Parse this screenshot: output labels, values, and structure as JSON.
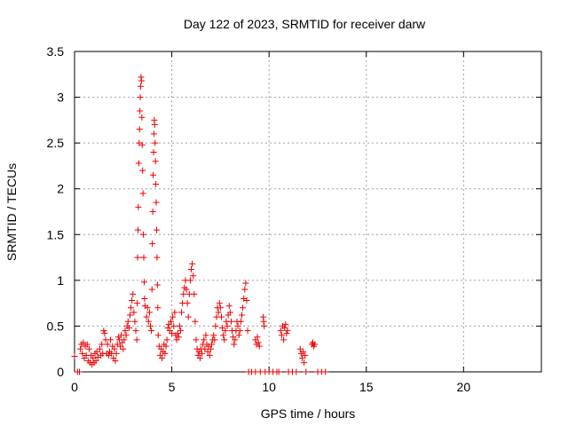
{
  "chart_data": {
    "type": "scatter",
    "title": "Day 122 of 2023, SRMTID for receiver darw",
    "xlabel": "GPS time / hours",
    "ylabel": "SRMTID / TECUs",
    "xlim": [
      0,
      24
    ],
    "ylim": [
      0,
      3.5
    ],
    "xticks": [
      0,
      5,
      10,
      15,
      20
    ],
    "xtick_labels": [
      "0",
      "5",
      "10",
      "15",
      "20"
    ],
    "yticks": [
      0,
      0.5,
      1,
      1.5,
      2,
      2.5,
      3,
      3.5
    ],
    "ytick_labels": [
      "0",
      "0.5",
      "1",
      "1.5",
      "2",
      "2.5",
      "3",
      "3.5"
    ],
    "grid": true,
    "marker": "+",
    "color": "#ee0000",
    "series": [
      {
        "name": "darw",
        "points": [
          [
            0.0,
            0.17
          ],
          [
            0.15,
            0.0
          ],
          [
            0.25,
            0.0
          ],
          [
            0.3,
            0.25
          ],
          [
            0.35,
            0.3
          ],
          [
            0.4,
            0.2
          ],
          [
            0.45,
            0.32
          ],
          [
            0.5,
            0.15
          ],
          [
            0.55,
            0.28
          ],
          [
            0.6,
            0.18
          ],
          [
            0.65,
            0.3
          ],
          [
            0.7,
            0.12
          ],
          [
            0.75,
            0.25
          ],
          [
            0.8,
            0.1
          ],
          [
            0.85,
            0.18
          ],
          [
            0.9,
            0.08
          ],
          [
            0.95,
            0.15
          ],
          [
            1.0,
            0.1
          ],
          [
            1.05,
            0.2
          ],
          [
            1.1,
            0.12
          ],
          [
            1.15,
            0.22
          ],
          [
            1.2,
            0.16
          ],
          [
            1.3,
            0.25
          ],
          [
            1.35,
            0.18
          ],
          [
            1.4,
            0.3
          ],
          [
            1.45,
            0.2
          ],
          [
            1.5,
            0.45
          ],
          [
            1.55,
            0.42
          ],
          [
            1.6,
            0.35
          ],
          [
            1.65,
            0.2
          ],
          [
            1.7,
            0.3
          ],
          [
            1.75,
            0.18
          ],
          [
            1.8,
            0.22
          ],
          [
            1.85,
            0.35
          ],
          [
            1.9,
            0.2
          ],
          [
            1.95,
            0.28
          ],
          [
            2.0,
            0.15
          ],
          [
            2.05,
            0.25
          ],
          [
            2.1,
            0.12
          ],
          [
            2.15,
            0.2
          ],
          [
            2.2,
            0.3
          ],
          [
            2.25,
            0.38
          ],
          [
            2.3,
            0.35
          ],
          [
            2.35,
            0.28
          ],
          [
            2.4,
            0.4
          ],
          [
            2.45,
            0.32
          ],
          [
            2.5,
            0.25
          ],
          [
            2.55,
            0.35
          ],
          [
            2.6,
            0.45
          ],
          [
            2.65,
            0.4
          ],
          [
            2.7,
            0.5
          ],
          [
            2.75,
            0.55
          ],
          [
            2.8,
            0.48
          ],
          [
            2.85,
            0.62
          ],
          [
            2.9,
            0.7
          ],
          [
            2.95,
            0.78
          ],
          [
            3.0,
            0.85
          ],
          [
            3.05,
            0.65
          ],
          [
            3.1,
            0.55
          ],
          [
            3.15,
            0.45
          ],
          [
            3.2,
            0.35
          ],
          [
            3.22,
            0.75
          ],
          [
            3.24,
            1.25
          ],
          [
            3.26,
            1.55
          ],
          [
            3.28,
            1.8
          ],
          [
            3.3,
            2.28
          ],
          [
            3.32,
            2.5
          ],
          [
            3.34,
            2.65
          ],
          [
            3.36,
            2.85
          ],
          [
            3.38,
            3.0
          ],
          [
            3.4,
            3.12
          ],
          [
            3.42,
            3.22
          ],
          [
            3.44,
            3.18
          ],
          [
            3.46,
            2.78
          ],
          [
            3.48,
            2.48
          ],
          [
            3.5,
            2.2
          ],
          [
            3.52,
            1.95
          ],
          [
            3.54,
            1.5
          ],
          [
            3.56,
            1.25
          ],
          [
            3.58,
            0.98
          ],
          [
            3.6,
            0.8
          ],
          [
            3.62,
            0.72
          ],
          [
            3.7,
            0.6
          ],
          [
            3.75,
            0.7
          ],
          [
            3.8,
            0.55
          ],
          [
            3.85,
            0.65
          ],
          [
            3.9,
            0.5
          ],
          [
            3.95,
            0.45
          ],
          [
            3.98,
            0.9
          ],
          [
            4.0,
            1.4
          ],
          [
            4.02,
            1.75
          ],
          [
            4.04,
            2.15
          ],
          [
            4.06,
            2.4
          ],
          [
            4.08,
            2.6
          ],
          [
            4.1,
            2.75
          ],
          [
            4.12,
            2.7
          ],
          [
            4.14,
            2.5
          ],
          [
            4.16,
            2.3
          ],
          [
            4.18,
            2.05
          ],
          [
            4.2,
            1.85
          ],
          [
            4.22,
            1.55
          ],
          [
            4.24,
            1.25
          ],
          [
            4.26,
            0.95
          ],
          [
            4.28,
            0.7
          ],
          [
            4.3,
            0.4
          ],
          [
            4.35,
            0.28
          ],
          [
            4.4,
            0.18
          ],
          [
            4.45,
            0.25
          ],
          [
            4.5,
            0.15
          ],
          [
            4.55,
            0.22
          ],
          [
            4.6,
            0.3
          ],
          [
            4.65,
            0.2
          ],
          [
            4.7,
            0.28
          ],
          [
            4.75,
            0.35
          ],
          [
            4.8,
            0.48
          ],
          [
            4.85,
            0.52
          ],
          [
            4.9,
            0.45
          ],
          [
            4.95,
            0.55
          ],
          [
            5.0,
            0.42
          ],
          [
            5.05,
            0.6
          ],
          [
            5.1,
            0.5
          ],
          [
            5.15,
            0.65
          ],
          [
            5.2,
            0.4
          ],
          [
            5.25,
            0.35
          ],
          [
            5.3,
            0.42
          ],
          [
            5.35,
            0.38
          ],
          [
            5.4,
            0.5
          ],
          [
            5.45,
            0.45
          ],
          [
            5.5,
            0.65
          ],
          [
            5.55,
            0.75
          ],
          [
            5.6,
            0.85
          ],
          [
            5.65,
            0.92
          ],
          [
            5.7,
            1.0
          ],
          [
            5.75,
            0.9
          ],
          [
            5.8,
            0.75
          ],
          [
            5.85,
            0.6
          ],
          [
            5.9,
            0.85
          ],
          [
            5.95,
            1.0
          ],
          [
            6.0,
            1.12
          ],
          [
            6.05,
            1.18
          ],
          [
            6.1,
            1.05
          ],
          [
            6.15,
            0.85
          ],
          [
            6.2,
            0.55
          ],
          [
            6.25,
            0.35
          ],
          [
            6.3,
            0.25
          ],
          [
            6.35,
            0.18
          ],
          [
            6.4,
            0.22
          ],
          [
            6.45,
            0.15
          ],
          [
            6.5,
            0.25
          ],
          [
            6.55,
            0.2
          ],
          [
            6.6,
            0.3
          ],
          [
            6.65,
            0.35
          ],
          [
            6.7,
            0.25
          ],
          [
            6.75,
            0.4
          ],
          [
            6.8,
            0.3
          ],
          [
            6.85,
            0.22
          ],
          [
            6.9,
            0.28
          ],
          [
            6.95,
            0.18
          ],
          [
            7.0,
            0.25
          ],
          [
            7.05,
            0.3
          ],
          [
            7.1,
            0.35
          ],
          [
            7.15,
            0.4
          ],
          [
            7.2,
            0.35
          ],
          [
            7.25,
            0.5
          ],
          [
            7.3,
            0.6
          ],
          [
            7.35,
            0.7
          ],
          [
            7.4,
            0.65
          ],
          [
            7.45,
            0.75
          ],
          [
            7.5,
            0.7
          ],
          [
            7.55,
            0.6
          ],
          [
            7.6,
            0.48
          ],
          [
            7.65,
            0.4
          ],
          [
            7.7,
            0.35
          ],
          [
            7.75,
            0.45
          ],
          [
            7.8,
            0.55
          ],
          [
            7.85,
            0.5
          ],
          [
            7.9,
            0.62
          ],
          [
            7.95,
            0.72
          ],
          [
            8.0,
            0.65
          ],
          [
            8.05,
            0.55
          ],
          [
            8.1,
            0.45
          ],
          [
            8.15,
            0.38
          ],
          [
            8.2,
            0.3
          ],
          [
            8.25,
            0.35
          ],
          [
            8.3,
            0.45
          ],
          [
            8.35,
            0.55
          ],
          [
            8.4,
            0.5
          ],
          [
            8.45,
            0.4
          ],
          [
            8.5,
            0.45
          ],
          [
            8.55,
            0.55
          ],
          [
            8.6,
            0.62
          ],
          [
            8.65,
            0.7
          ],
          [
            8.7,
            0.8
          ],
          [
            8.75,
            0.9
          ],
          [
            8.8,
            0.97
          ],
          [
            8.85,
            0.78
          ],
          [
            8.9,
            0.45
          ],
          [
            8.95,
            0.0
          ],
          [
            9.1,
            0.0
          ],
          [
            9.3,
            0.0
          ],
          [
            9.3,
            0.35
          ],
          [
            9.35,
            0.3
          ],
          [
            9.4,
            0.38
          ],
          [
            9.45,
            0.32
          ],
          [
            9.5,
            0.28
          ],
          [
            9.55,
            0.0
          ],
          [
            9.7,
            0.6
          ],
          [
            9.72,
            0.55
          ],
          [
            9.75,
            0.5
          ],
          [
            9.8,
            0.0
          ],
          [
            10.0,
            0.0
          ],
          [
            10.2,
            0.0
          ],
          [
            10.4,
            0.0
          ],
          [
            10.5,
            0.0
          ],
          [
            10.6,
            0.45
          ],
          [
            10.65,
            0.4
          ],
          [
            10.7,
            0.5
          ],
          [
            10.75,
            0.35
          ],
          [
            10.8,
            0.48
          ],
          [
            10.85,
            0.52
          ],
          [
            10.9,
            0.42
          ],
          [
            10.95,
            0.45
          ],
          [
            11.0,
            0.0
          ],
          [
            11.2,
            0.0
          ],
          [
            11.4,
            0.0
          ],
          [
            11.6,
            0.25
          ],
          [
            11.65,
            0.2
          ],
          [
            11.7,
            0.15
          ],
          [
            11.75,
            0.22
          ],
          [
            11.8,
            0.1
          ],
          [
            11.85,
            0.18
          ],
          [
            11.9,
            0.0
          ],
          [
            12.2,
            0.3
          ],
          [
            12.25,
            0.32
          ],
          [
            12.3,
            0.28
          ],
          [
            12.35,
            0.3
          ],
          [
            12.5,
            0.0
          ],
          [
            12.7,
            0.0
          ],
          [
            12.9,
            0.0
          ]
        ]
      }
    ]
  }
}
